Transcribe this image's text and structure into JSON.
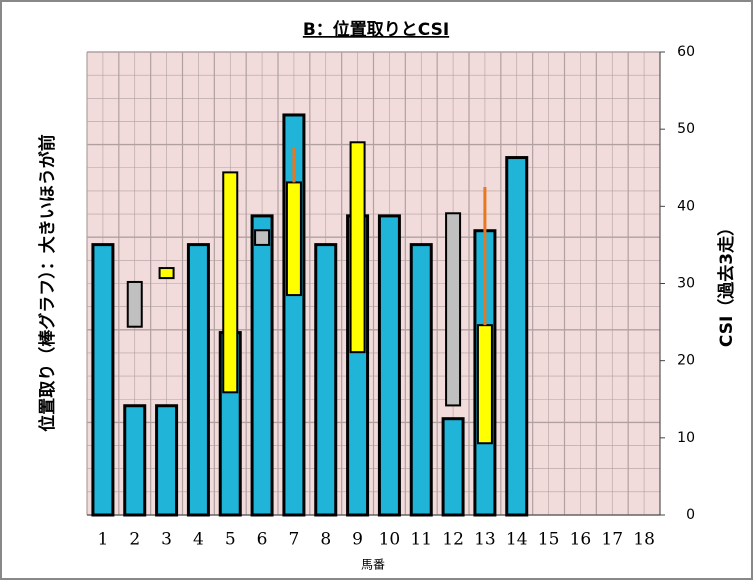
{
  "chart_data": {
    "type": "bar",
    "title": "B：位置取りとCSI",
    "y_label": "位置取り（棒グラフ）：大きいほうが前",
    "y2_label": "CSI（過去3走）",
    "x_label": "馬番",
    "categories": [
      "1",
      "2",
      "3",
      "4",
      "5",
      "6",
      "7",
      "8",
      "9",
      "10",
      "11",
      "12",
      "13",
      "14",
      "15",
      "16",
      "17",
      "18"
    ],
    "ylim": [
      0,
      5
    ],
    "y2lim": [
      0,
      60
    ],
    "y2ticks": [
      0,
      10,
      20,
      30,
      40,
      50,
      60
    ],
    "grid": true,
    "series": [
      {
        "color": "#1fb4d8",
        "values": [
          2.92,
          1.18,
          1.18,
          2.92,
          1.97,
          3.23,
          4.32,
          2.92,
          3.23,
          3.23,
          2.92,
          1.04,
          3.07,
          3.86,
          0,
          0,
          0,
          0
        ]
      },
      {
        "color": "#ffff00",
        "axis": "y2",
        "low": [
          null,
          null,
          30.7,
          null,
          15.9,
          null,
          28.5,
          null,
          21.1,
          null,
          null,
          null,
          9.3,
          null,
          null,
          null,
          null,
          null
        ],
        "high": [
          null,
          null,
          32.0,
          null,
          44.4,
          null,
          43.1,
          null,
          48.3,
          null,
          null,
          null,
          24.6,
          null,
          null,
          null,
          null,
          null
        ]
      },
      {
        "color": "#c0c0c0",
        "axis": "y2",
        "low": [
          null,
          24.4,
          null,
          null,
          null,
          35.0,
          null,
          null,
          null,
          null,
          null,
          14.2,
          null,
          null,
          null,
          null,
          null,
          null
        ],
        "high": [
          null,
          30.2,
          null,
          null,
          null,
          36.9,
          null,
          null,
          null,
          null,
          null,
          39.1,
          null,
          null,
          null,
          null,
          null,
          null
        ]
      },
      {
        "color": "#e87722",
        "axis": "y2",
        "low": [
          null,
          null,
          null,
          null,
          null,
          null,
          43.1,
          null,
          null,
          null,
          null,
          null,
          24.6,
          null,
          null,
          null,
          null,
          null
        ],
        "high": [
          null,
          null,
          null,
          null,
          null,
          null,
          47.7,
          null,
          null,
          null,
          null,
          null,
          42.5,
          null,
          null,
          null,
          null,
          null
        ]
      }
    ]
  }
}
